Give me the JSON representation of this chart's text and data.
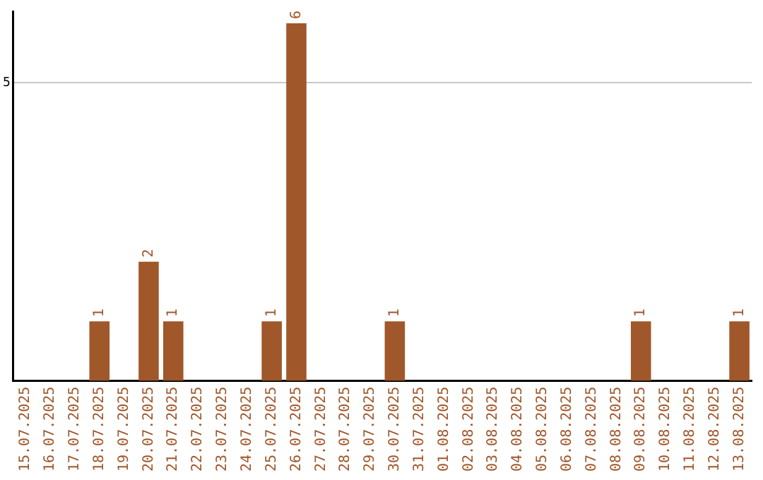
{
  "chart_data": {
    "type": "bar",
    "categories": [
      "15.07.2025",
      "16.07.2025",
      "17.07.2025",
      "18.07.2025",
      "19.07.2025",
      "20.07.2025",
      "21.07.2025",
      "22.07.2025",
      "23.07.2025",
      "24.07.2025",
      "25.07.2025",
      "26.07.2025",
      "27.07.2025",
      "28.07.2025",
      "29.07.2025",
      "30.07.2025",
      "31.07.2025",
      "01.08.2025",
      "02.08.2025",
      "03.08.2025",
      "04.08.2025",
      "05.08.2025",
      "06.08.2025",
      "07.08.2025",
      "08.08.2025",
      "09.08.2025",
      "10.08.2025",
      "11.08.2025",
      "12.08.2025",
      "13.08.2025"
    ],
    "values": [
      0,
      0,
      0,
      1,
      0,
      2,
      1,
      0,
      0,
      0,
      1,
      6,
      0,
      0,
      0,
      1,
      0,
      0,
      0,
      0,
      0,
      0,
      0,
      0,
      0,
      1,
      0,
      0,
      0,
      1
    ],
    "value_labels": [
      null,
      null,
      null,
      "1",
      null,
      "2",
      "1",
      null,
      null,
      null,
      "1",
      "6",
      null,
      null,
      null,
      "1",
      null,
      null,
      null,
      null,
      null,
      null,
      null,
      null,
      null,
      "1",
      null,
      null,
      null,
      "1"
    ],
    "color": "#a0572a",
    "ylim": [
      0,
      6.2
    ],
    "yticks": [
      5
    ],
    "grid": "y",
    "legend": false
  }
}
